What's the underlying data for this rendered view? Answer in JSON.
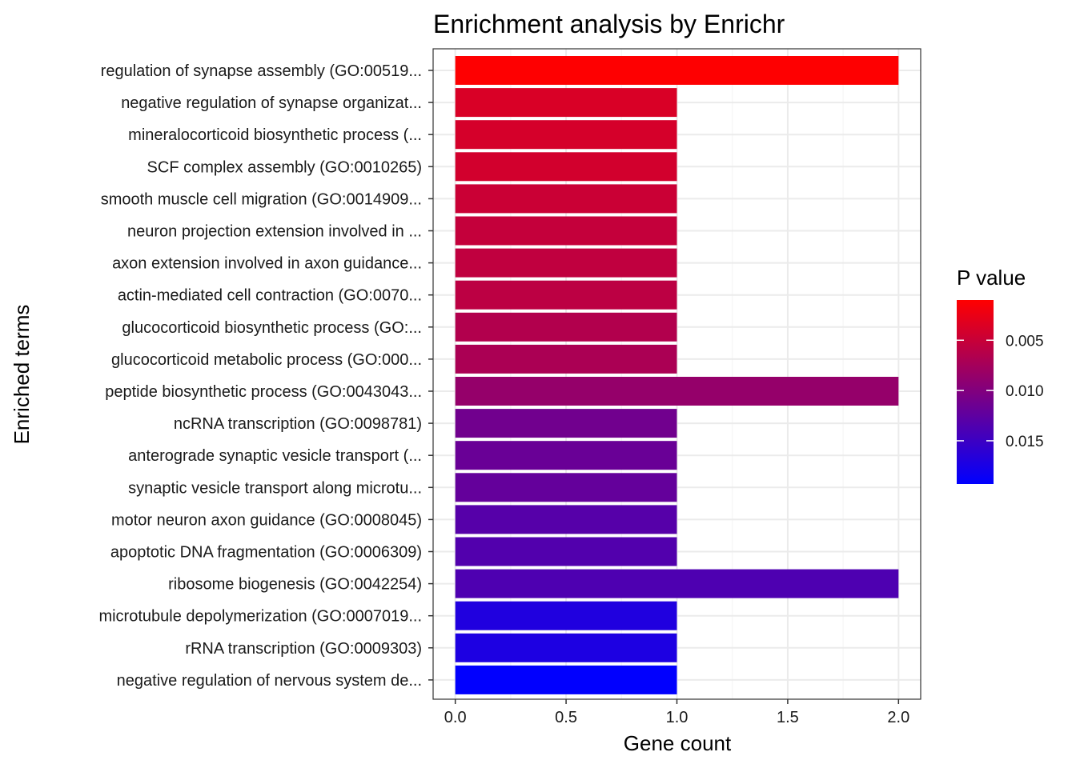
{
  "chart_data": {
    "type": "bar",
    "orientation": "horizontal",
    "title": "Enrichment analysis by Enrichr",
    "xlabel": "Gene count",
    "ylabel": "Enriched terms",
    "xlim": [
      -0.1,
      2.1
    ],
    "xticks": [
      0.0,
      0.5,
      1.0,
      1.5,
      2.0
    ],
    "xtick_labels": [
      "0.0",
      "0.5",
      "1.0",
      "1.5",
      "2.0"
    ],
    "grid": true,
    "categories": [
      "regulation of synapse assembly (GO:00519...",
      "negative regulation of synapse organizat...",
      "mineralocorticoid biosynthetic process (...",
      "SCF complex assembly (GO:0010265)",
      "smooth muscle cell migration (GO:0014909...",
      "neuron projection extension involved in ...",
      "axon extension involved in axon guidance...",
      "actin-mediated cell contraction (GO:0070...",
      "glucocorticoid biosynthetic process (GO:...",
      "glucocorticoid metabolic process (GO:000...",
      "peptide biosynthetic process (GO:0043043...",
      "ncRNA transcription (GO:0098781)",
      "anterograde synaptic vesicle transport (...",
      "synaptic vesicle transport along microtu...",
      "motor neuron axon guidance (GO:0008045)",
      "apoptotic DNA fragmentation (GO:0006309)",
      "ribosome biogenesis (GO:0042254)",
      "microtubule depolymerization (GO:0007019...",
      "rRNA transcription (GO:0009303)",
      "negative regulation of nervous system de..."
    ],
    "values": [
      2,
      1,
      1,
      1,
      1,
      1,
      1,
      1,
      1,
      1,
      2,
      1,
      1,
      1,
      1,
      1,
      2,
      1,
      1,
      1
    ],
    "p_values": [
      0.0011,
      0.0037,
      0.004,
      0.0042,
      0.0048,
      0.0052,
      0.0055,
      0.0058,
      0.0065,
      0.007,
      0.0086,
      0.0112,
      0.0118,
      0.0121,
      0.0131,
      0.0134,
      0.0137,
      0.017,
      0.0172,
      0.0192
    ],
    "legend": {
      "title": "P value",
      "position": "right",
      "range": [
        0.001,
        0.0193
      ],
      "ticks": [
        0.005,
        0.01,
        0.015
      ],
      "tick_labels": [
        "0.005",
        "0.010",
        "0.015"
      ],
      "low_color": "#FF0000",
      "high_color": "#0000FF"
    },
    "colors": {
      "panel_border": "#333333",
      "grid_major": "#EBEBEB",
      "grid_minor": "#F5F5F5",
      "text": "#1a1a1a"
    }
  }
}
